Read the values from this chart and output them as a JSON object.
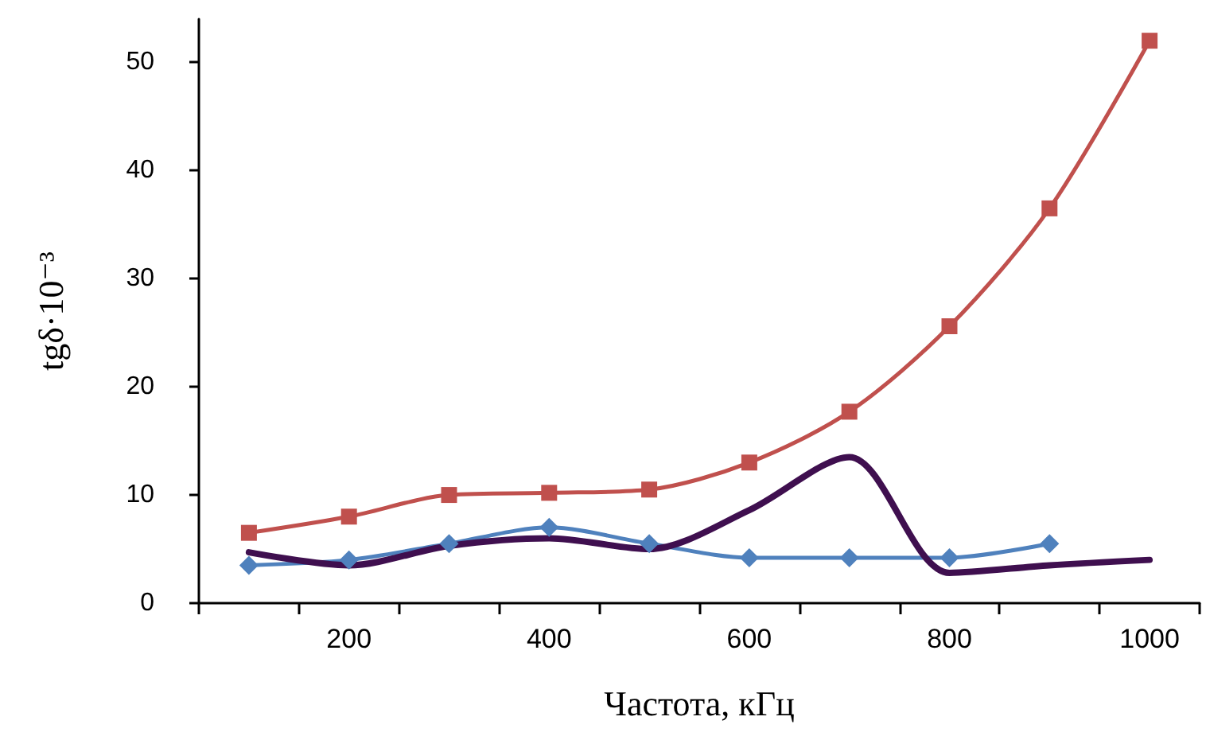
{
  "chart_data": {
    "type": "line",
    "xlabel": "Частота, кГц",
    "ylabel": "tgδ·10⁻³",
    "categories": [
      null,
      "200",
      null,
      "400",
      null,
      "600",
      null,
      "800",
      null,
      "1000"
    ],
    "ylim": [
      0,
      54
    ],
    "yticks": [
      0,
      10,
      20,
      30,
      40,
      50
    ],
    "series": [
      {
        "color": "#c0504d",
        "marker": "square",
        "values": [
          6.5,
          8,
          10,
          10.2,
          10.5,
          13,
          17.7,
          25.6,
          36.5,
          52
        ]
      },
      {
        "color": "#4f81bd",
        "marker": "diamond",
        "values": [
          3.5,
          4.0,
          5.5,
          7.0,
          5.5,
          4.2,
          4.2,
          4.2,
          5.5,
          null
        ]
      },
      {
        "color": "#3f0f4f",
        "marker": "none",
        "values": [
          4.7,
          3.5,
          5.3,
          6.0,
          5.0,
          8.6,
          13.5,
          2.8,
          3.5,
          4.0
        ]
      }
    ]
  }
}
